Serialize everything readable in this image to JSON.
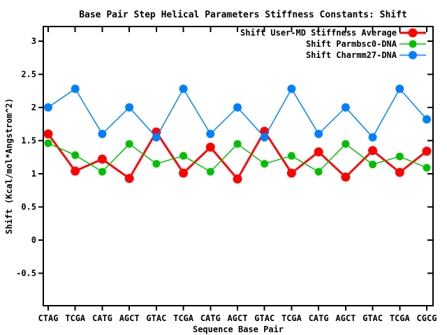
{
  "figure": {
    "background": "#ffffff",
    "border_color": "#000000",
    "text_color": "#000000"
  },
  "chart_data": {
    "type": "line",
    "title": "Base Pair Step Helical Parameters Stiffness Constants: Shift",
    "xlabel": "Sequence Base Pair",
    "ylabel": "Shift (Kcal/mol*Angstrom^2)",
    "categories": [
      "CTAG",
      "TCGA",
      "CATG",
      "AGCT",
      "GTAC",
      "TCGA",
      "CATG",
      "AGCT",
      "GTAC",
      "TCGA",
      "CATG",
      "AGCT",
      "GTAC",
      "TCGA",
      "CGCG"
    ],
    "series": [
      {
        "name": "Shift User-MD Stiffness Average",
        "color": "#ff0000",
        "line_width": 3,
        "point_radius": 6.5,
        "values": [
          1.6,
          1.04,
          1.22,
          0.93,
          1.63,
          1.01,
          1.4,
          0.92,
          1.64,
          1.01,
          1.33,
          0.95,
          1.35,
          1.02,
          1.34
        ]
      },
      {
        "name": "Shift Parmbsc0-DNA",
        "color": "#00c000",
        "line_width": 1.5,
        "point_radius": 5.5,
        "values": [
          1.46,
          1.28,
          1.03,
          1.45,
          1.15,
          1.27,
          1.03,
          1.45,
          1.15,
          1.27,
          1.03,
          1.45,
          1.14,
          1.26,
          1.09
        ]
      },
      {
        "name": "Shift Charmm27-DNA",
        "color": "#0080ff",
        "line_width": 1.5,
        "point_radius": 6,
        "values": [
          2.0,
          2.28,
          1.6,
          2.0,
          1.55,
          2.28,
          1.6,
          2.0,
          1.55,
          2.28,
          1.6,
          2.0,
          1.55,
          2.28,
          1.82
        ]
      }
    ],
    "ytick_values": [
      3,
      2.5,
      2,
      1.5,
      1,
      0.5,
      0,
      -0.5
    ],
    "ytick_labels": [
      "3",
      "2.5",
      "2",
      "1.5",
      "1",
      "0.5",
      "0",
      "-0.5"
    ],
    "ylim": [
      -0.99,
      3.22
    ],
    "grid": false,
    "legend_position": "top-right-inside"
  }
}
